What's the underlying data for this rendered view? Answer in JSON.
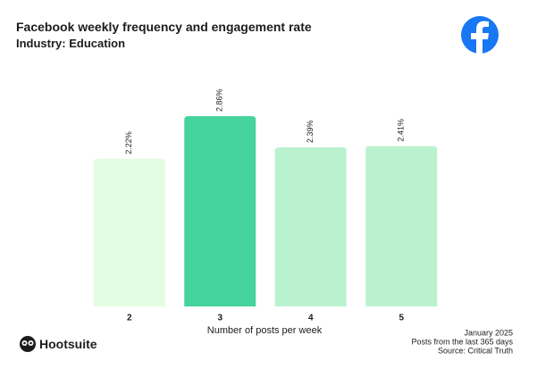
{
  "chart_data": {
    "type": "bar",
    "title": "Facebook weekly frequency and engagement rate",
    "subtitle": "Industry: Education",
    "x_label": "Number of posts per week",
    "categories": [
      "2",
      "3",
      "4",
      "5"
    ],
    "values": [
      2.22,
      2.86,
      2.39,
      2.41
    ],
    "value_labels": [
      "2.22%",
      "2.86%",
      "2.39%",
      "2.41%"
    ],
    "colors": [
      "#e3fde4",
      "#47d39c",
      "#baf2d0",
      "#baf2d0"
    ]
  },
  "footer": [
    "January 2025",
    "Posts from the last 365 days",
    "Source: Critical Truth"
  ],
  "brand": "Hootsuite"
}
